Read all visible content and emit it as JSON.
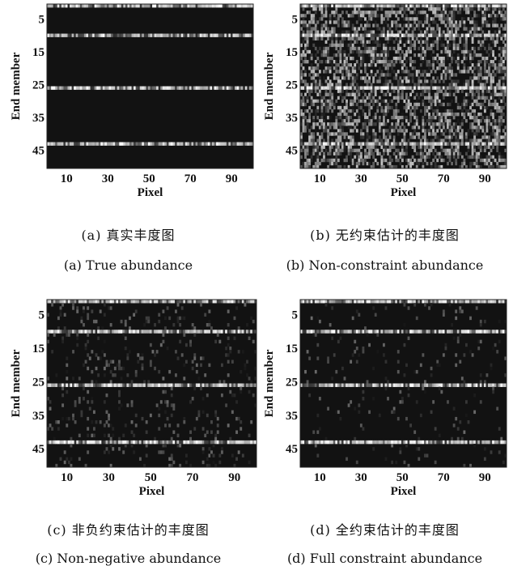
{
  "chart_data": [
    {
      "type": "heatmap",
      "xlabel": "Pixel",
      "ylabel": "End member",
      "x_ticks": [
        "10",
        "30",
        "50",
        "70",
        "90"
      ],
      "y_ticks": [
        "5",
        "15",
        "25",
        "35",
        "45"
      ],
      "x_range": [
        1,
        100
      ],
      "y_range": [
        1,
        50
      ],
      "active_end_members": [
        1,
        10,
        26,
        43
      ],
      "noise_level": 0.0,
      "caption_cn": "(a) 真实丰度图",
      "caption_en": "(a) True abundance"
    },
    {
      "type": "heatmap",
      "xlabel": "Pixel",
      "ylabel": "End member",
      "x_ticks": [
        "10",
        "30",
        "50",
        "70",
        "90"
      ],
      "y_ticks": [
        "5",
        "15",
        "25",
        "35",
        "45"
      ],
      "x_range": [
        1,
        100
      ],
      "y_range": [
        1,
        50
      ],
      "active_end_members": [
        1,
        10,
        26,
        43
      ],
      "noise_level": 0.55,
      "caption_cn": "(b) 无约束估计的丰度图",
      "caption_en": "(b) Non-constraint abundance"
    },
    {
      "type": "heatmap",
      "xlabel": "Pixel",
      "ylabel": "End member",
      "x_ticks": [
        "10",
        "30",
        "50",
        "70",
        "90"
      ],
      "y_ticks": [
        "5",
        "15",
        "25",
        "35",
        "45"
      ],
      "x_range": [
        1,
        100
      ],
      "y_range": [
        1,
        50
      ],
      "active_end_members": [
        1,
        10,
        26,
        43
      ],
      "noise_level": 0.1,
      "caption_cn": "(c) 非负约束估计的丰度图",
      "caption_en": "(c) Non-negative abundance"
    },
    {
      "type": "heatmap",
      "xlabel": "Pixel",
      "ylabel": "End member",
      "x_ticks": [
        "10",
        "30",
        "50",
        "70",
        "90"
      ],
      "y_ticks": [
        "5",
        "15",
        "25",
        "35",
        "45"
      ],
      "x_range": [
        1,
        100
      ],
      "y_range": [
        1,
        50
      ],
      "active_end_members": [
        1,
        10,
        26,
        43
      ],
      "noise_level": 0.05,
      "caption_cn": "(d) 全约束估计的丰度图",
      "caption_en": "(d) Full constraint abundance"
    }
  ]
}
